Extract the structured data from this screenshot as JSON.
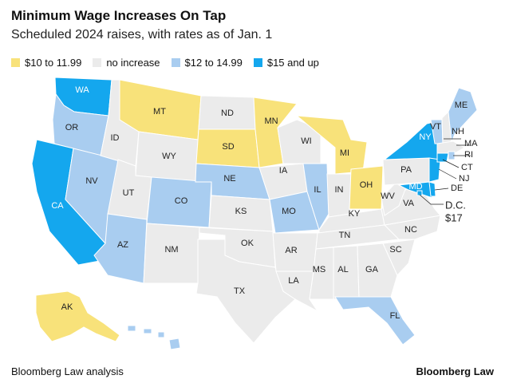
{
  "title": "Minimum Wage Increases On Tap",
  "subtitle": "Scheduled 2024 raises, with rates as of Jan. 1",
  "legend": [
    {
      "key": "yellow",
      "label": "$10 to 11.99"
    },
    {
      "key": "gray",
      "label": "no increase"
    },
    {
      "key": "lightblue",
      "label": "$12 to 14.99"
    },
    {
      "key": "blue",
      "label": "$15 and up"
    }
  ],
  "colors": {
    "yellow": "#f8e27a",
    "gray": "#ebebeb",
    "lightblue": "#a9cdf0",
    "blue": "#14a7ee"
  },
  "states": {
    "WA": "blue",
    "OR": "lightblue",
    "CA": "blue",
    "NV": "lightblue",
    "AZ": "lightblue",
    "ID": "gray",
    "MT": "yellow",
    "WY": "gray",
    "UT": "gray",
    "CO": "lightblue",
    "NM": "gray",
    "ND": "gray",
    "SD": "yellow",
    "NE": "lightblue",
    "KS": "gray",
    "OK": "gray",
    "TX": "gray",
    "MN": "yellow",
    "IA": "gray",
    "MO": "lightblue",
    "AR": "gray",
    "LA": "gray",
    "WI": "gray",
    "IL": "lightblue",
    "MI": "yellow",
    "IN": "gray",
    "OH": "yellow",
    "KY": "gray",
    "TN": "gray",
    "MS": "gray",
    "AL": "gray",
    "GA": "gray",
    "FL": "lightblue",
    "SC": "gray",
    "NC": "gray",
    "VA": "gray",
    "WV": "gray",
    "PA": "gray",
    "NY": "blue",
    "VT": "lightblue",
    "NH": "gray",
    "ME": "lightblue",
    "MA": "gray",
    "RI": "lightblue",
    "CT": "blue",
    "NJ": "blue",
    "DE": "blue",
    "MD": "blue",
    "DC": "blue",
    "AK": "yellow",
    "HI": "lightblue"
  },
  "dc_label": "D.C.",
  "dc_rate": "$17",
  "source": "Bloomberg Law analysis",
  "brand": "Bloomberg Law"
}
